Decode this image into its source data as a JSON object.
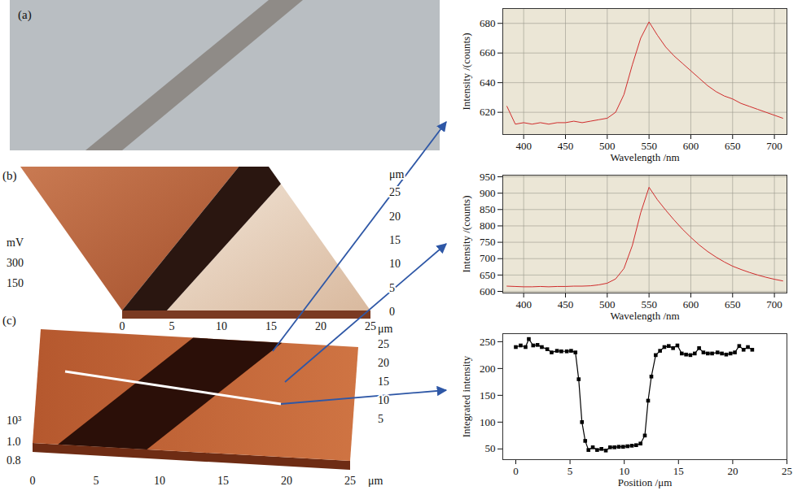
{
  "chart_data": [
    {
      "type": "line",
      "x_label": "Wavelength /nm",
      "y_label": "Intensity /(counts)",
      "x": [
        380,
        390,
        400,
        410,
        420,
        430,
        440,
        450,
        460,
        470,
        480,
        490,
        500,
        510,
        520,
        530,
        540,
        550,
        560,
        570,
        580,
        590,
        600,
        610,
        620,
        630,
        640,
        650,
        660,
        670,
        680,
        690,
        700,
        710
      ],
      "values": [
        624,
        612,
        613,
        612,
        613,
        612,
        613,
        613,
        614,
        613,
        614,
        615,
        616,
        620,
        632,
        652,
        670,
        681,
        672,
        664,
        658,
        653,
        648,
        643,
        638,
        634,
        631,
        629,
        626,
        624,
        622,
        620,
        618,
        616
      ],
      "color": "#d02c2c",
      "xlim": [
        375,
        715
      ],
      "xticks": [
        400,
        450,
        500,
        550,
        600,
        650,
        700
      ],
      "ylim": [
        605,
        690
      ],
      "yticks": [
        620,
        640,
        660,
        680
      ],
      "grid": true
    },
    {
      "type": "line",
      "x_label": "Wavelength /nm",
      "y_label": "Intensity /(counts)",
      "x": [
        380,
        390,
        400,
        410,
        420,
        430,
        440,
        450,
        460,
        470,
        480,
        490,
        500,
        510,
        520,
        530,
        540,
        550,
        560,
        570,
        580,
        590,
        600,
        610,
        620,
        630,
        640,
        650,
        660,
        670,
        680,
        690,
        700,
        710
      ],
      "values": [
        616,
        615,
        614,
        614,
        615,
        614,
        615,
        615,
        616,
        616,
        617,
        620,
        625,
        638,
        670,
        740,
        840,
        918,
        880,
        848,
        818,
        790,
        765,
        742,
        722,
        705,
        690,
        677,
        667,
        658,
        650,
        643,
        637,
        632
      ],
      "color": "#d02c2c",
      "xlim": [
        375,
        715
      ],
      "xticks": [
        400,
        450,
        500,
        550,
        600,
        650,
        700
      ],
      "ylim": [
        595,
        955
      ],
      "yticks": [
        600,
        650,
        700,
        750,
        800,
        850,
        900,
        950
      ],
      "grid": true
    },
    {
      "type": "line",
      "x_label": "Position /μm",
      "y_label": "Integrated intensity",
      "x": [
        0,
        0.45,
        0.9,
        1.2,
        1.6,
        2.0,
        2.4,
        2.9,
        3.3,
        3.8,
        4.2,
        4.7,
        5.1,
        5.5,
        5.8,
        6.1,
        6.4,
        6.7,
        7.1,
        7.5,
        7.9,
        8.3,
        8.7,
        9.1,
        9.5,
        9.9,
        10.3,
        10.7,
        11.1,
        11.5,
        11.9,
        12.2,
        12.5,
        12.9,
        13.3,
        13.7,
        14.1,
        14.5,
        14.9,
        15.3,
        15.7,
        16.1,
        16.5,
        16.9,
        17.3,
        17.7,
        18.1,
        18.6,
        19.0,
        19.4,
        19.8,
        20.2,
        20.6,
        21.0,
        21.4,
        21.8
      ],
      "values": [
        240,
        243,
        240,
        255,
        243,
        244,
        240,
        236,
        230,
        233,
        232,
        232,
        233,
        230,
        180,
        100,
        65,
        48,
        53,
        48,
        50,
        47,
        53,
        53,
        54,
        54,
        55,
        56,
        57,
        60,
        75,
        140,
        185,
        225,
        233,
        240,
        242,
        238,
        243,
        228,
        226,
        225,
        228,
        238,
        230,
        228,
        228,
        230,
        228,
        226,
        228,
        230,
        242,
        235,
        240,
        235
      ],
      "color": "#000000",
      "marker": "square",
      "xlim": [
        -1.2,
        25
      ],
      "xticks": [
        0,
        5,
        10,
        15,
        20,
        25
      ],
      "ylim": [
        30,
        265
      ],
      "yticks": [
        50,
        100,
        150,
        200,
        250
      ],
      "grid": false
    }
  ],
  "image_panels": {
    "a": {
      "label": "(a)"
    },
    "b": {
      "label": "(b)",
      "z_unit": "mV",
      "z_ticks": [
        150,
        300
      ],
      "x_ticks": [
        0,
        5,
        10,
        15,
        20,
        25
      ],
      "y_ticks": [
        0,
        5,
        10,
        15,
        20,
        25
      ],
      "y_unit": "μm"
    },
    "c": {
      "label": "(c)",
      "z_scale": "10³",
      "z_ticks": [
        {
          "value": 0.8,
          "label": "0.8"
        },
        {
          "value": 1.0,
          "label": "1.0"
        }
      ],
      "x_ticks": [
        0,
        5,
        10,
        15,
        20,
        25
      ],
      "x_unit": "μm",
      "y_ticks": [
        5,
        10,
        15,
        20,
        25
      ],
      "y_unit": "μm"
    }
  }
}
